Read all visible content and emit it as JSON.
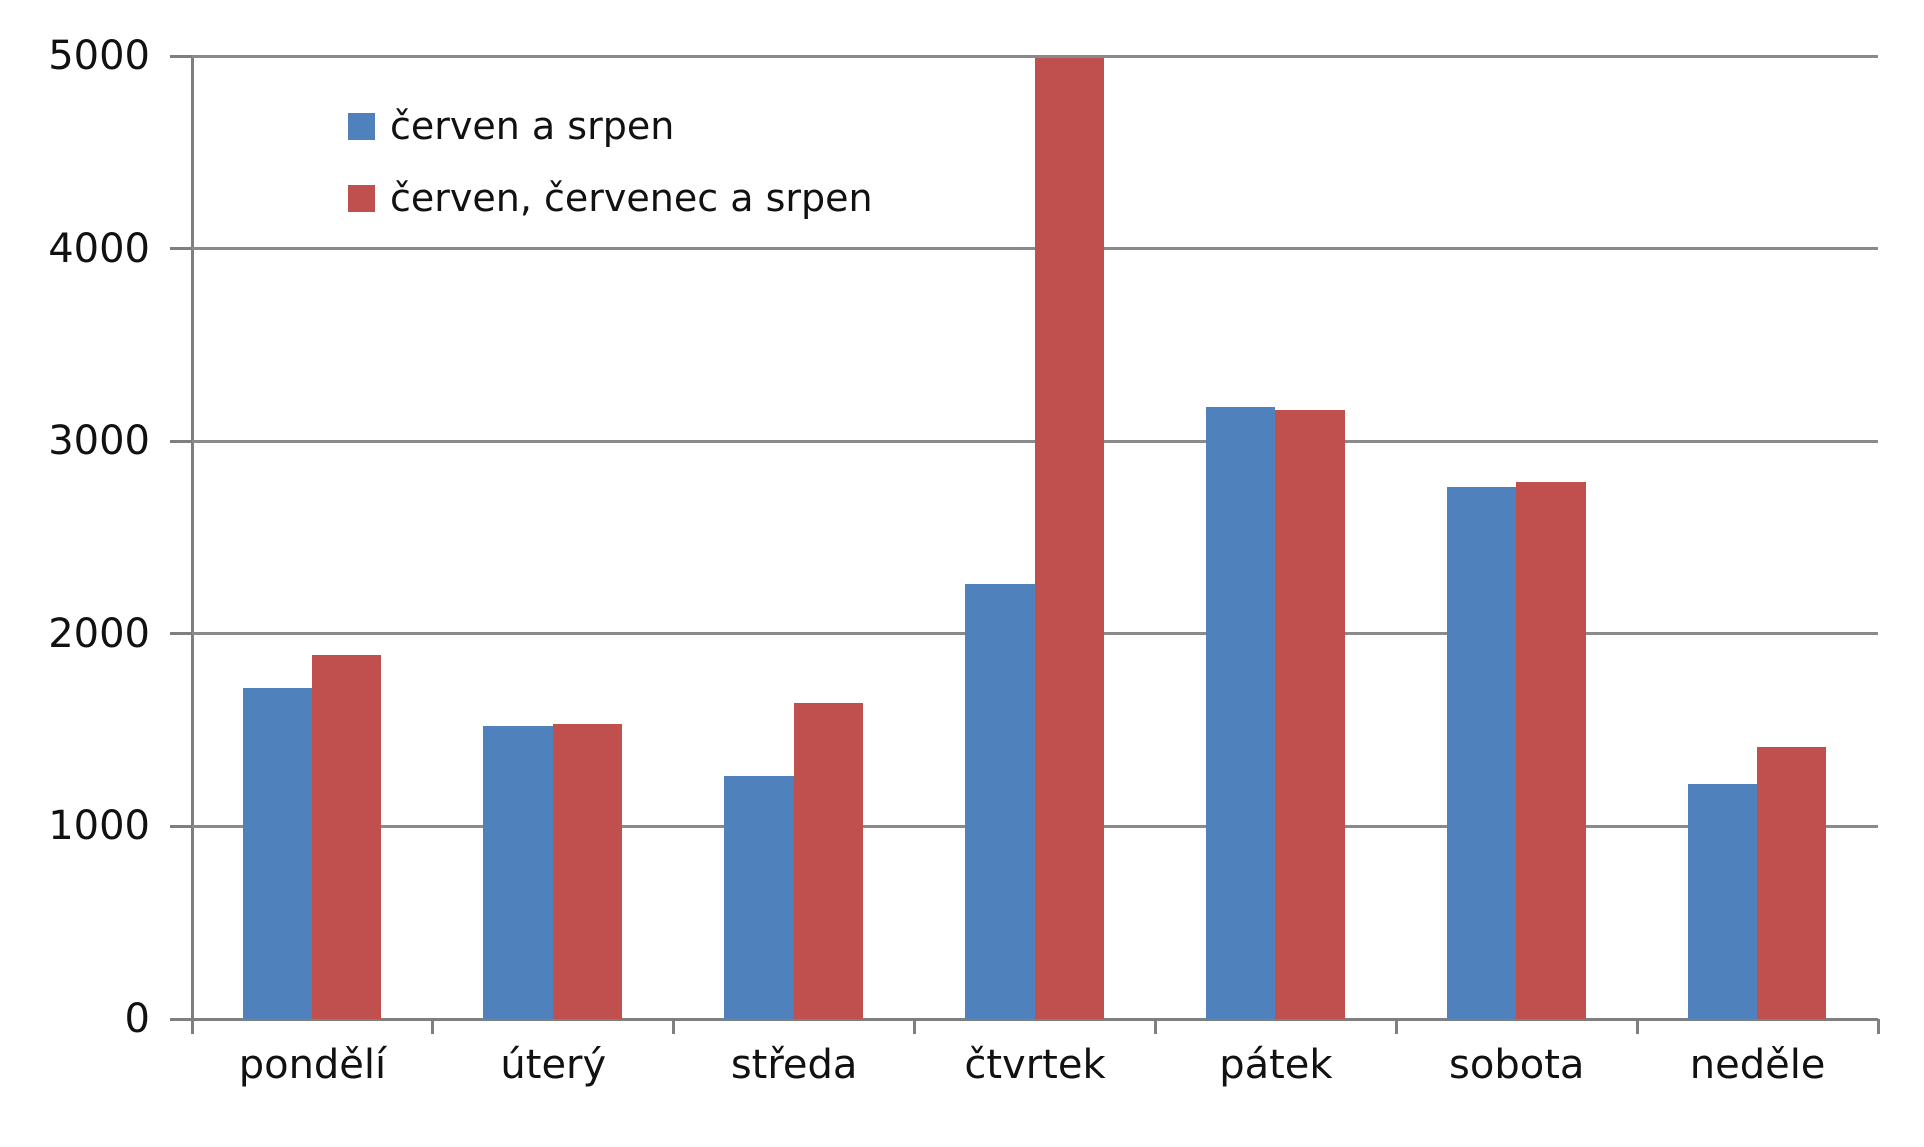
{
  "chart_data": {
    "type": "bar",
    "title": "",
    "xlabel": "",
    "ylabel": "",
    "categories": [
      "pondělí",
      "úterý",
      "středa",
      "čtvrtek",
      "pátek",
      "sobota",
      "neděle"
    ],
    "series": [
      {
        "name": "červen a srpen",
        "color": "#4F81BD",
        "values": [
          1720,
          1520,
          1260,
          2260,
          3180,
          2760,
          1220
        ]
      },
      {
        "name": "červen, červenec a srpen",
        "color": "#C0504D",
        "values": [
          1890,
          1530,
          1640,
          4990,
          3160,
          2790,
          1410
        ]
      }
    ],
    "ylim": [
      0,
      5000
    ],
    "ytick_step": 1000,
    "ytick_labels": [
      "0",
      "1000",
      "2000",
      "3000",
      "4000",
      "5000"
    ],
    "grid": "horizontal",
    "legend_position": "top-left-inside"
  },
  "colors": {
    "background": "#ffffff",
    "gridline": "#8a8a8a",
    "axis": "#7f7f7f",
    "text": "#111111",
    "series_blue": "#4F81BD",
    "series_red": "#C0504D"
  }
}
